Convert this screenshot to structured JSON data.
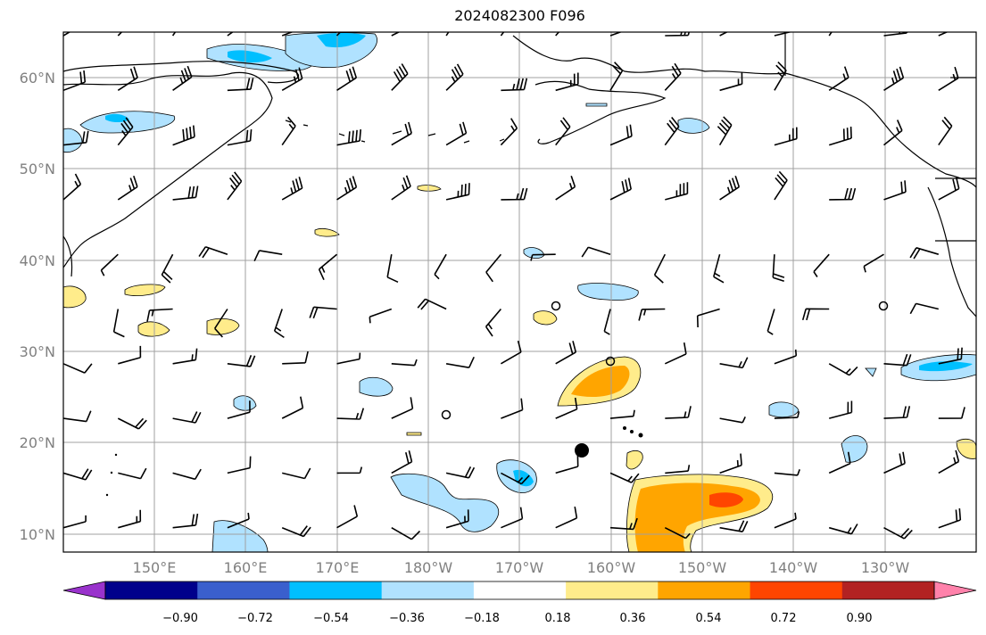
{
  "title": "2024082300 F096",
  "map": {
    "lat_labels": [
      "60°N",
      "50°N",
      "40°N",
      "30°N",
      "20°N",
      "10°N"
    ],
    "lon_labels": [
      "150°E",
      "160°E",
      "170°E",
      "180°W",
      "170°W",
      "160°W",
      "150°W",
      "140°W",
      "130°W"
    ],
    "gridlines": true
  },
  "colorbar": {
    "tick_labels": [
      "−0.90",
      "−0.72",
      "−0.54",
      "−0.36",
      "−0.18",
      "0.18",
      "0.36",
      "0.54",
      "0.72",
      "0.90"
    ],
    "colors": [
      "#9932cc",
      "#00008b",
      "#3a5fcd",
      "#00bfff",
      "#b0e2ff",
      "#ffffff",
      "#ffec8b",
      "#ffa500",
      "#ff4500",
      "#b22222",
      "#ff82ab"
    ],
    "extend": "both"
  }
}
